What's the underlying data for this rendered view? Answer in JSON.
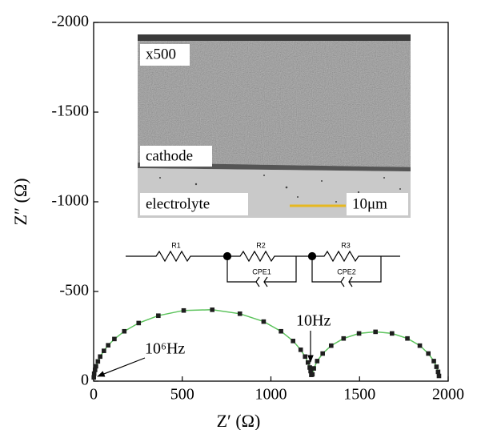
{
  "chart_data": {
    "type": "line",
    "xlabel": "Z′ (Ω)",
    "ylabel": "Z″ (Ω)",
    "x": [
      1,
      3,
      8,
      13,
      24,
      37,
      58,
      82,
      117,
      173,
      254,
      365,
      508,
      669,
      825,
      959,
      1057,
      1125,
      1168,
      1193,
      1209,
      1219,
      1224,
      1228,
      1234,
      1242,
      1261,
      1292,
      1340,
      1410,
      1497,
      1590,
      1683,
      1770,
      1840,
      1888,
      1919,
      1934,
      1943,
      1948
    ],
    "values": [
      -21,
      -42,
      -63,
      -83,
      -110,
      -137,
      -169,
      -200,
      -235,
      -278,
      -324,
      -365,
      -394,
      -398,
      -376,
      -332,
      -278,
      -224,
      -175,
      -137,
      -104,
      -76,
      -56,
      -35,
      -38,
      -71,
      -112,
      -154,
      -198,
      -238,
      -266,
      -275,
      -266,
      -238,
      -198,
      -154,
      -112,
      -80,
      -52,
      -29
    ],
    "color": "#5cc35c",
    "marker_color": "#1e1e1e",
    "xlim": [
      0,
      2000
    ],
    "xticks": [
      0,
      500,
      1000,
      1500,
      2000
    ],
    "ylim": [
      0,
      -2000
    ],
    "yticks": [
      0,
      -500,
      -1000,
      -1500,
      -2000
    ],
    "annotations": [
      "10⁶Hz",
      "10Hz"
    ]
  },
  "inset": {
    "labels": [
      "x500",
      "cathode",
      "electrolyte",
      "10μm"
    ]
  },
  "circuit": {
    "labels": [
      "R1",
      "R2",
      "R3",
      "CPE1",
      "CPE2"
    ]
  }
}
